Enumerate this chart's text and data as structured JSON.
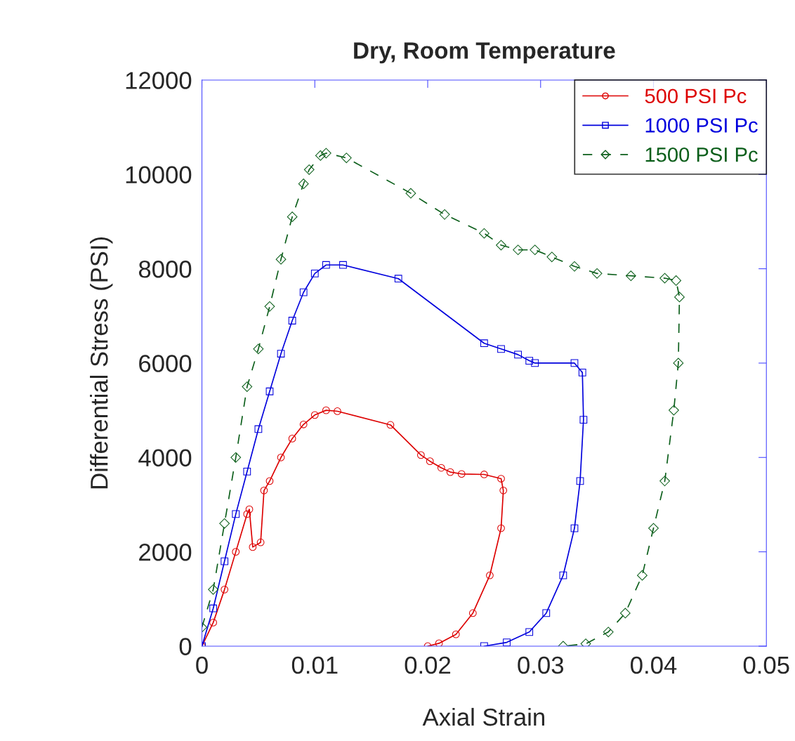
{
  "chart_data": {
    "type": "line",
    "title": "Dry, Room Temperature",
    "xlabel": "Axial Strain",
    "ylabel": "Differential Stress (PSI)",
    "xlim": [
      0,
      0.05
    ],
    "xticks": [
      0,
      0.01,
      0.02,
      0.03,
      0.04,
      0.05
    ],
    "ylim": [
      0,
      12000
    ],
    "yticks": [
      0,
      2000,
      4000,
      6000,
      8000,
      10000,
      12000
    ],
    "grid": false,
    "legend": "top right",
    "series": [
      {
        "name": "500 PSI Pc",
        "color": "#dd0000",
        "marker": "circle",
        "line_style": "solid",
        "x": [
          0,
          0.001,
          0.002,
          0.003,
          0.004,
          0.0042,
          0.0045,
          0.0052,
          0.0055,
          0.006,
          0.007,
          0.008,
          0.009,
          0.01,
          0.011,
          0.012,
          0.0167,
          0.0194,
          0.0202,
          0.0212,
          0.022,
          0.023,
          0.025,
          0.0265,
          0.0267,
          0.0265,
          0.0255,
          0.024,
          0.0225,
          0.021,
          0.02
        ],
        "values": [
          0,
          500,
          1200,
          2000,
          2800,
          2900,
          2100,
          2200,
          3300,
          3500,
          4000,
          4400,
          4700,
          4900,
          5000,
          4980,
          4690,
          4050,
          3920,
          3780,
          3690,
          3650,
          3640,
          3550,
          3300,
          2500,
          1500,
          700,
          250,
          60,
          0
        ]
      },
      {
        "name": "1000 PSI Pc",
        "color": "#0000dd",
        "marker": "square",
        "line_style": "solid",
        "x": [
          0,
          0.001,
          0.002,
          0.003,
          0.004,
          0.005,
          0.006,
          0.007,
          0.008,
          0.009,
          0.01,
          0.011,
          0.0125,
          0.0174,
          0.025,
          0.0265,
          0.028,
          0.029,
          0.0295,
          0.033,
          0.0337,
          0.0338,
          0.0335,
          0.033,
          0.032,
          0.0305,
          0.029,
          0.027,
          0.025
        ],
        "values": [
          0,
          800,
          1800,
          2800,
          3700,
          4600,
          5400,
          6200,
          6900,
          7500,
          7900,
          8080,
          8080,
          7790,
          6420,
          6300,
          6180,
          6050,
          6000,
          6000,
          5800,
          4800,
          3500,
          2500,
          1500,
          700,
          300,
          80,
          0
        ]
      },
      {
        "name": "1500 PSI Pc",
        "color": "#0b5e1a",
        "marker": "diamond",
        "line_style": "dashed",
        "x": [
          0,
          0.001,
          0.002,
          0.003,
          0.004,
          0.005,
          0.006,
          0.007,
          0.008,
          0.009,
          0.0095,
          0.0105,
          0.011,
          0.0128,
          0.0185,
          0.0215,
          0.025,
          0.0265,
          0.028,
          0.0295,
          0.031,
          0.033,
          0.035,
          0.038,
          0.041,
          0.042,
          0.0423,
          0.0422,
          0.0418,
          0.041,
          0.04,
          0.039,
          0.0375,
          0.036,
          0.034,
          0.032
        ],
        "values": [
          400,
          1200,
          2600,
          4000,
          5500,
          6300,
          7200,
          8200,
          9100,
          9800,
          10100,
          10400,
          10450,
          10350,
          9600,
          9150,
          8750,
          8500,
          8400,
          8400,
          8250,
          8050,
          7900,
          7850,
          7800,
          7750,
          7400,
          6000,
          5000,
          3500,
          2500,
          1500,
          700,
          300,
          50,
          0
        ]
      }
    ]
  }
}
